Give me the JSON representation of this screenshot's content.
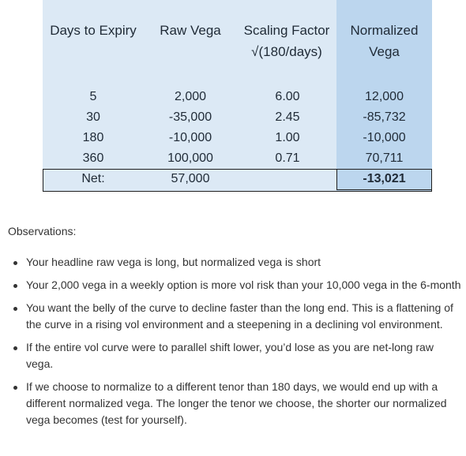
{
  "table": {
    "headers": {
      "days": "Days to Expiry",
      "raw_vega": "Raw Vega",
      "scaling_line1": "Scaling Factor",
      "scaling_line2": "√(180/days)",
      "normalized_line1": "Normalized",
      "normalized_line2": "Vega"
    },
    "rows": [
      {
        "days": "5",
        "raw_vega": "2,000",
        "scaling": "6.00",
        "normalized": "12,000"
      },
      {
        "days": "30",
        "raw_vega": "-35,000",
        "scaling": "2.45",
        "normalized": "-85,732"
      },
      {
        "days": "180",
        "raw_vega": "-10,000",
        "scaling": "1.00",
        "normalized": "-10,000"
      },
      {
        "days": "360",
        "raw_vega": "100,000",
        "scaling": "0.71",
        "normalized": "70,711"
      }
    ],
    "net": {
      "label": "Net:",
      "raw_vega": "57,000",
      "normalized": "-13,021"
    },
    "colors": {
      "table_bg": "#dce9f5",
      "normalized_bg": "#bcd6ee"
    }
  },
  "observations": {
    "title": "Observations:",
    "bullets": [
      "Your headline raw vega is long, but normalized vega is short",
      "Your 2,000 vega in a weekly option is more vol risk than your 10,000 vega in the 6-month",
      "You want the belly of the curve to decline faster than the long end. This is a flattening of the curve in a rising vol environment and a steepening in a declining vol environment.",
      "If the entire vol curve were to parallel shift lower, you’d lose as you are net-long raw vega.",
      "If we choose to normalize to a different tenor than 180 days, we would end up with a different normalized vega. The longer the tenor we choose, the shorter our normalized vega becomes (test for yourself)."
    ]
  }
}
